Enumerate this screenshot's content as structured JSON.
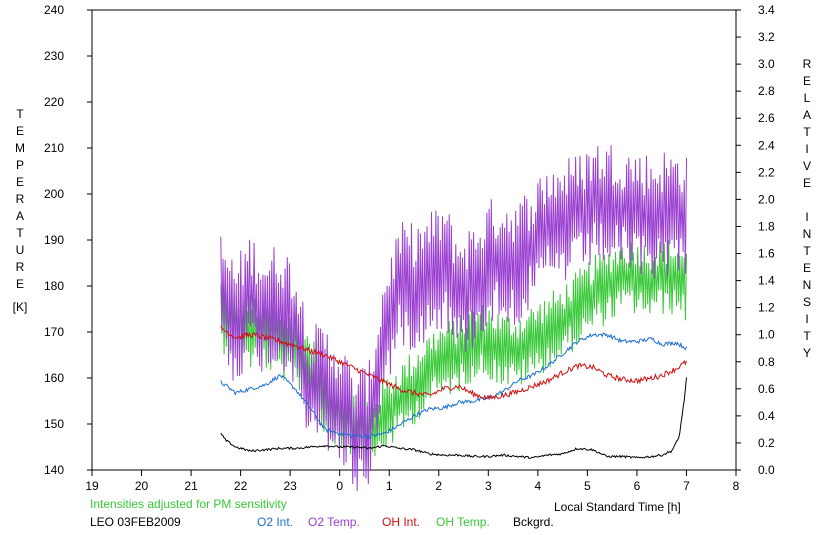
{
  "chart_data": {
    "type": "line",
    "xlabel": "Local Standard Time [h]",
    "ylabel_left": "TEMPERATURE",
    "ylabel_left_unit": "[K]",
    "ylabel_right": "RELATIVE INTENSITY",
    "note": "Intensities adjusted for PM sensitivity",
    "caption": "LEO 03FEB2009",
    "x_ticks": [
      "19",
      "20",
      "21",
      "22",
      "23",
      "0",
      "1",
      "2",
      "3",
      "4",
      "5",
      "6",
      "7",
      "8"
    ],
    "x_range": [
      19,
      32
    ],
    "ylim_left": [
      140,
      240
    ],
    "ylim_right": [
      0,
      3.4
    ],
    "y_ticks_left": [
      "140",
      "150",
      "160",
      "170",
      "180",
      "190",
      "200",
      "210",
      "220",
      "230",
      "240"
    ],
    "y_ticks_right": [
      "0.0",
      "0.2",
      "0.4",
      "0.6",
      "0.8",
      "1.0",
      "1.2",
      "1.4",
      "1.6",
      "1.8",
      "2.0",
      "2.2",
      "2.4",
      "2.6",
      "2.8",
      "3.0",
      "3.2",
      "3.4"
    ],
    "grid": false,
    "series": [
      {
        "name": "O2 Int.",
        "axis": "right",
        "color": "#1e6fd0",
        "noise": 0.015,
        "x": [
          21.6,
          21.9,
          22.2,
          22.5,
          22.8,
          23.1,
          23.4,
          23.7,
          24.0,
          24.3,
          24.6,
          24.9,
          25.2,
          25.5,
          25.8,
          26.1,
          26.4,
          26.7,
          27.0,
          27.3,
          27.6,
          27.9,
          28.2,
          28.5,
          28.8,
          29.1,
          29.4,
          29.7,
          30.0,
          30.3,
          30.5,
          30.8,
          31.0
        ],
        "values": [
          0.65,
          0.57,
          0.6,
          0.63,
          0.7,
          0.6,
          0.46,
          0.3,
          0.27,
          0.25,
          0.25,
          0.27,
          0.33,
          0.4,
          0.45,
          0.46,
          0.5,
          0.51,
          0.53,
          0.58,
          0.66,
          0.7,
          0.77,
          0.86,
          0.95,
          1.0,
          1.0,
          0.95,
          0.95,
          0.97,
          0.93,
          0.94,
          0.9
        ]
      },
      {
        "name": "O2 Temp.",
        "axis": "left",
        "color": "#9a3fd0",
        "noise": 10,
        "x": [
          21.6,
          21.9,
          22.2,
          22.5,
          22.8,
          23.1,
          23.4,
          23.7,
          24.0,
          24.3,
          24.6,
          24.9,
          25.2,
          25.5,
          25.8,
          26.1,
          26.4,
          26.7,
          27.0,
          27.3,
          27.6,
          27.9,
          28.2,
          28.5,
          28.8,
          29.1,
          29.4,
          29.7,
          30.0,
          30.3,
          30.5,
          30.8,
          31.0
        ],
        "values": [
          178,
          172,
          178,
          174,
          176,
          172,
          158,
          158,
          155,
          148,
          150,
          170,
          180,
          180,
          182,
          185,
          178,
          180,
          185,
          186,
          185,
          189,
          193,
          194,
          195,
          198,
          198,
          197,
          196,
          195,
          196,
          196,
          196
        ]
      },
      {
        "name": "OH Int.",
        "axis": "right",
        "color": "#d01010",
        "noise": 0.02,
        "x": [
          21.6,
          21.9,
          22.2,
          22.5,
          22.8,
          23.1,
          23.4,
          23.7,
          24.0,
          24.3,
          24.6,
          24.9,
          25.2,
          25.5,
          25.8,
          26.1,
          26.4,
          26.7,
          27.0,
          27.3,
          27.6,
          27.9,
          28.2,
          28.5,
          28.8,
          29.1,
          29.4,
          29.7,
          30.0,
          30.3,
          30.5,
          30.8,
          31.0
        ],
        "values": [
          1.05,
          0.98,
          1.0,
          0.98,
          0.95,
          0.92,
          0.88,
          0.85,
          0.8,
          0.75,
          0.7,
          0.65,
          0.6,
          0.57,
          0.55,
          0.6,
          0.62,
          0.56,
          0.53,
          0.55,
          0.58,
          0.62,
          0.66,
          0.72,
          0.77,
          0.76,
          0.7,
          0.67,
          0.66,
          0.68,
          0.7,
          0.75,
          0.8
        ]
      },
      {
        "name": "OH Temp.",
        "axis": "left",
        "color": "#38c838",
        "noise": 6,
        "x": [
          21.6,
          21.9,
          22.2,
          22.5,
          22.8,
          23.1,
          23.4,
          23.7,
          24.0,
          24.3,
          24.6,
          24.9,
          25.2,
          25.5,
          25.8,
          26.1,
          26.4,
          26.7,
          27.0,
          27.3,
          27.6,
          27.9,
          28.2,
          28.5,
          28.8,
          29.1,
          29.4,
          29.7,
          30.0,
          30.3,
          30.5,
          30.8,
          31.0
        ],
        "values": [
          174,
          172,
          170,
          170,
          168,
          166,
          162,
          155,
          153,
          150,
          148,
          152,
          155,
          158,
          162,
          164,
          165,
          168,
          168,
          166,
          166,
          168,
          170,
          172,
          175,
          178,
          180,
          182,
          182,
          181,
          182,
          182,
          180
        ]
      },
      {
        "name": "Bckgrd.",
        "axis": "right",
        "color": "#000000",
        "noise": 0.008,
        "x": [
          21.6,
          21.7,
          21.9,
          22.2,
          22.5,
          22.8,
          23.1,
          23.4,
          23.7,
          24.0,
          24.3,
          24.6,
          24.9,
          25.2,
          25.5,
          25.8,
          26.1,
          26.4,
          26.7,
          27.0,
          27.3,
          27.6,
          27.9,
          28.2,
          28.5,
          28.8,
          29.1,
          29.4,
          29.7,
          30.0,
          30.3,
          30.5,
          30.7,
          30.85,
          30.95,
          31.0
        ],
        "values": [
          0.27,
          0.22,
          0.17,
          0.14,
          0.15,
          0.16,
          0.16,
          0.17,
          0.18,
          0.17,
          0.17,
          0.16,
          0.18,
          0.16,
          0.15,
          0.12,
          0.11,
          0.11,
          0.1,
          0.1,
          0.11,
          0.1,
          0.09,
          0.11,
          0.12,
          0.16,
          0.15,
          0.1,
          0.1,
          0.09,
          0.1,
          0.11,
          0.14,
          0.24,
          0.5,
          0.68
        ]
      }
    ]
  }
}
